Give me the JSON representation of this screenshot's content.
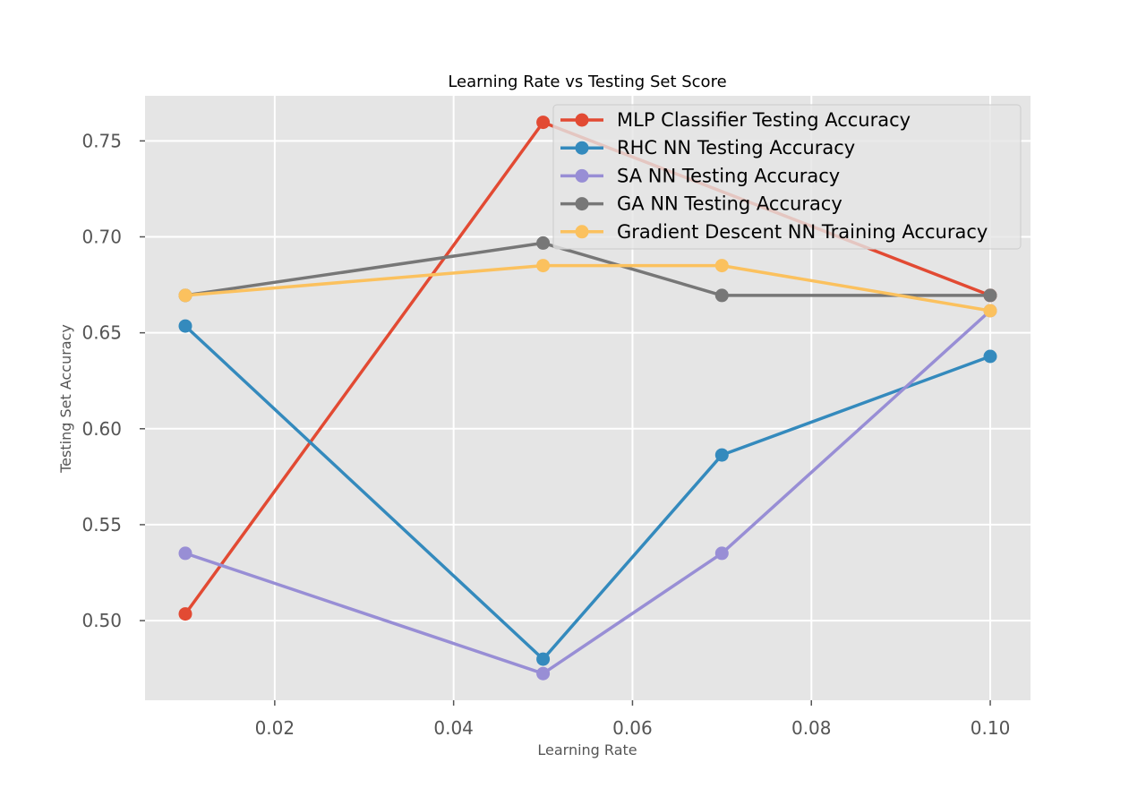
{
  "chart_data": {
    "type": "line",
    "title": "Learning Rate vs Testing Set Score",
    "xlabel": "Learning Rate",
    "ylabel": "Testing Set Accuracy",
    "xlim": [
      0.0055,
      0.1045
    ],
    "ylim": [
      0.4585,
      0.7735
    ],
    "xticks": [
      0.02,
      0.04,
      0.06,
      0.08,
      0.1
    ],
    "xtick_labels": [
      "0.02",
      "0.04",
      "0.06",
      "0.08",
      "0.10"
    ],
    "yticks": [
      0.5,
      0.55,
      0.6,
      0.65,
      0.7,
      0.75
    ],
    "ytick_labels": [
      "0.50",
      "0.55",
      "0.60",
      "0.65",
      "0.70",
      "0.75"
    ],
    "grid": true,
    "legend_position": "upper-right",
    "x": [
      0.01,
      0.05,
      0.07,
      0.1
    ],
    "series": [
      {
        "name": "MLP Classifier Testing Accuracy",
        "color": "#E24A33",
        "values": [
          0.5035,
          0.7597,
          null,
          0.6695
        ]
      },
      {
        "name": "RHC NN Testing Accuracy",
        "color": "#348ABD",
        "values": [
          0.6535,
          0.4799,
          0.5863,
          0.6377
        ]
      },
      {
        "name": "SA NN Testing Accuracy",
        "color": "#988ED5",
        "values": [
          0.5351,
          0.4724,
          0.5351,
          0.6615
        ]
      },
      {
        "name": "GA NN Testing Accuracy",
        "color": "#777777",
        "values": [
          0.6695,
          0.6968,
          0.6695,
          0.6695
        ]
      },
      {
        "name": "Gradient Descent NN Training Accuracy",
        "color": "#FBC15E",
        "values": [
          0.6695,
          0.685,
          0.685,
          0.6615
        ]
      }
    ]
  }
}
